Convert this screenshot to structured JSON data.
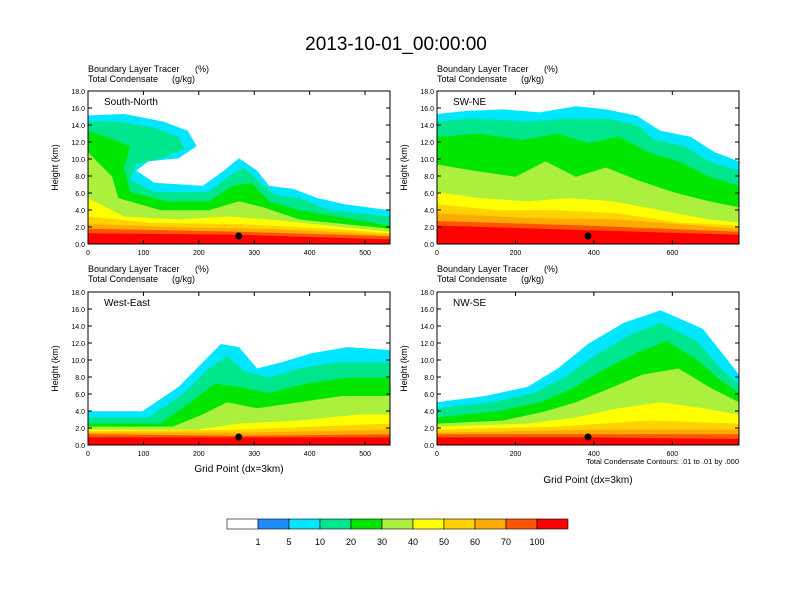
{
  "title": "2013-10-01_00:00:00",
  "field_label": "Boundary Layer Tracer",
  "field_unit": "(%)",
  "contour_label": "Total Condensate",
  "contour_unit": "(g/kg)",
  "x_axis_label": "Grid Point (dx=3km)",
  "contour_note": "Total Condensate Contours: .01 to .01 by .000",
  "colorbar": {
    "colors": [
      "#ffffff",
      "#1e8cff",
      "#00e6ff",
      "#00e68c",
      "#00e600",
      "#aaf03c",
      "#ffff00",
      "#ffd200",
      "#ffaa00",
      "#ff5500",
      "#ff0000"
    ],
    "labels": [
      "1",
      "5",
      "10",
      "20",
      "30",
      "40",
      "50",
      "60",
      "70",
      "100"
    ]
  },
  "chart_data": [
    {
      "type": "heatmap",
      "panel_label": "South-North",
      "ylabel": "Height (km)",
      "ylim": [
        0,
        18
      ],
      "yticks": [
        "0.0",
        "2.0",
        "4.0",
        "6.0",
        "8.0",
        "10.0",
        "12.0",
        "14.0",
        "16.0",
        "18.0"
      ],
      "xlim": [
        0,
        545
      ],
      "xticks": [
        "0",
        "100",
        "200",
        "300",
        "400",
        "500"
      ],
      "marker_x": 272
    },
    {
      "type": "heatmap",
      "panel_label": "SW-NE",
      "ylabel": "Height (km)",
      "ylim": [
        0,
        18
      ],
      "yticks": [
        "0.0",
        "2.0",
        "4.0",
        "6.0",
        "8.0",
        "10.0",
        "12.0",
        "14.0",
        "16.0",
        "18.0"
      ],
      "xlim": [
        0,
        770
      ],
      "xticks": [
        "0",
        "200",
        "400",
        "600"
      ],
      "marker_x": 385
    },
    {
      "type": "heatmap",
      "panel_label": "West-East",
      "ylabel": "Height (km)",
      "ylim": [
        0,
        18
      ],
      "yticks": [
        "0.0",
        "2.0",
        "4.0",
        "6.0",
        "8.0",
        "10.0",
        "12.0",
        "14.0",
        "16.0",
        "18.0"
      ],
      "xlim": [
        0,
        545
      ],
      "xticks": [
        "0",
        "100",
        "200",
        "300",
        "400",
        "500"
      ],
      "marker_x": 272
    },
    {
      "type": "heatmap",
      "panel_label": "NW-SE",
      "ylabel": "Height (km)",
      "ylim": [
        0,
        18
      ],
      "yticks": [
        "0.0",
        "2.0",
        "4.0",
        "6.0",
        "8.0",
        "10.0",
        "12.0",
        "14.0",
        "16.0",
        "18.0"
      ],
      "xlim": [
        0,
        770
      ],
      "xticks": [
        "0",
        "200",
        "400",
        "600"
      ],
      "marker_x": 385
    }
  ]
}
